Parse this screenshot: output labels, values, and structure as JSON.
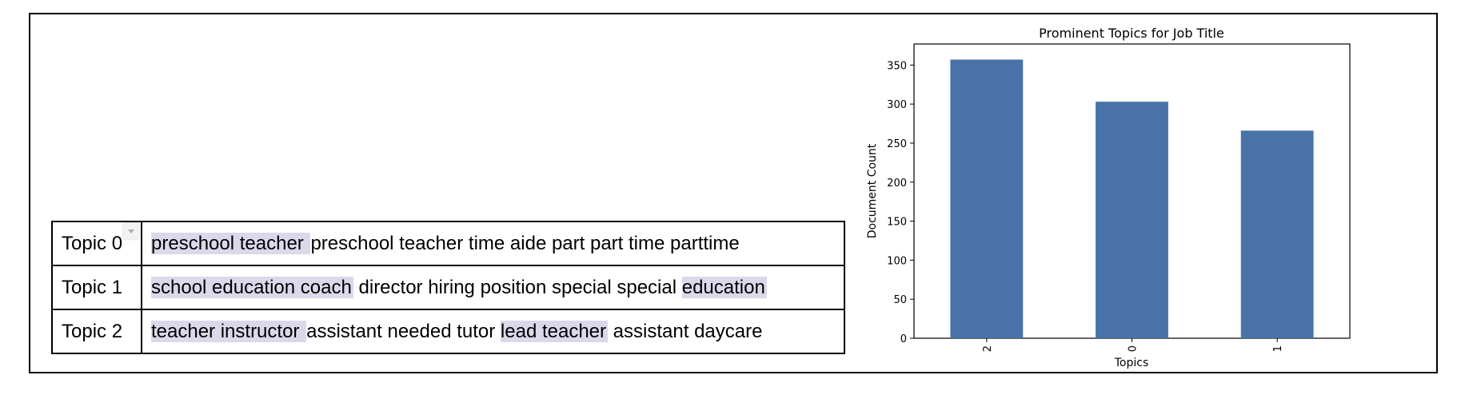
{
  "topics_table": {
    "rows": [
      {
        "label": "Topic 0",
        "segments": [
          {
            "text": "preschool teacher ",
            "hl": true
          },
          {
            "text": "preschool teacher time aide part part time parttime",
            "hl": false
          }
        ]
      },
      {
        "label": "Topic 1",
        "segments": [
          {
            "text": "school education coach",
            "hl": true
          },
          {
            "text": " director hiring position special special ",
            "hl": false
          },
          {
            "text": "education",
            "hl": true
          }
        ]
      },
      {
        "label": "Topic 2",
        "segments": [
          {
            "text": "teacher instructor ",
            "hl": true
          },
          {
            "text": "assistant needed tutor ",
            "hl": false
          },
          {
            "text": "lead teacher",
            "hl": true
          },
          {
            "text": " assistant daycare",
            "hl": false
          }
        ]
      }
    ]
  },
  "chart_data": {
    "type": "bar",
    "title": "Prominent Topics for Job Title",
    "xlabel": "Topics",
    "ylabel": "Document Count",
    "categories": [
      "2",
      "0",
      "1"
    ],
    "values": [
      357,
      303,
      266
    ],
    "ylim": [
      0,
      377
    ],
    "yticks": [
      0,
      50,
      100,
      150,
      200,
      250,
      300,
      350
    ],
    "bar_color": "#4872a8",
    "grid": false,
    "legend": "none"
  },
  "colors": {
    "highlight": "#dcd8ea",
    "border": "#000000"
  }
}
